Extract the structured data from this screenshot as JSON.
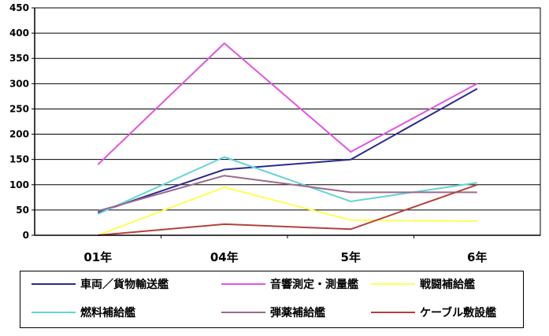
{
  "chart_data": {
    "type": "line",
    "title": "",
    "xlabel": "",
    "ylabel": "",
    "categories": [
      "01年",
      "04年",
      "5年",
      "6年"
    ],
    "ylim": [
      0,
      450
    ],
    "yticks": [
      0,
      50,
      100,
      150,
      200,
      250,
      300,
      350,
      400,
      450
    ],
    "grid": "horizontal",
    "legend": "bottom",
    "series": [
      {
        "name": "車両／貨物輸送艦",
        "color": "#2b2b8f",
        "values": [
          45,
          130,
          150,
          290
        ]
      },
      {
        "name": "音響測定・測量艦",
        "color": "#e055e0",
        "values": [
          140,
          380,
          165,
          300
        ]
      },
      {
        "name": "戦闘補給艦",
        "color": "#ffff55",
        "values": [
          0,
          95,
          30,
          28
        ]
      },
      {
        "name": "燃料補給艦",
        "color": "#66d4d4",
        "values": [
          42,
          155,
          67,
          104
        ]
      },
      {
        "name": "弾薬補給艦",
        "color": "#9c6a8c",
        "values": [
          48,
          118,
          85,
          85
        ]
      },
      {
        "name": "ケーブル敷設艦",
        "color": "#b5413b",
        "values": [
          0,
          22,
          12,
          100
        ]
      }
    ]
  }
}
